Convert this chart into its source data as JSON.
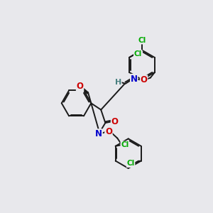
{
  "bg_color": "#e8e8ec",
  "bond_color": "#1a1a1a",
  "bond_lw": 1.4,
  "atom_colors": {
    "N": "#0000cc",
    "O": "#cc0000",
    "Cl": "#00aa00",
    "H": "#4a8080",
    "C": "#1a1a1a"
  },
  "font_size": 7.5,
  "fig_size": [
    3.0,
    3.0
  ],
  "dpi": 100
}
